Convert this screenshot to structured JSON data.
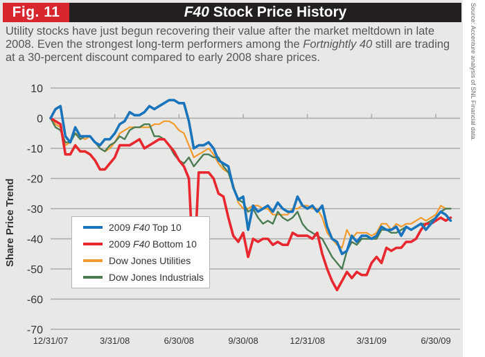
{
  "header": {
    "fig_label": "Fig. 11",
    "title_prefix": "F40",
    "title_rest": "Stock Price History"
  },
  "subtitle": {
    "part1": "Utility stocks have just begun recovering their value after the market meltdown in late 2008. Even the strongest long-term performers among the ",
    "italic": "Fortnightly 40",
    "part2": " still are trading at a 30-percent discount compared to early 2008 share prices."
  },
  "source": "Source: Accenture analysis of SNL Financial data.",
  "colors": {
    "panel": "#e8e8e7",
    "header_bg": "#231f20",
    "fig_tag": "#d7262d",
    "grid": "#a9a9a9"
  },
  "legend": [
    {
      "prefix": "2009 ",
      "italic": "F40",
      "suffix": " Top 10"
    },
    {
      "prefix": "2009 ",
      "italic": "F40",
      "suffix": " Bottom 10"
    },
    {
      "prefix": "",
      "italic": "",
      "suffix": "Dow Jones Utilities"
    },
    {
      "prefix": "",
      "italic": "",
      "suffix": "Dow Jones Industrials"
    }
  ],
  "chart_data": {
    "type": "line",
    "title": "F40 Stock Price History",
    "xlabel": "",
    "ylabel": "Share Price Trend",
    "ylim": [
      -70,
      10
    ],
    "yticks": [
      10,
      0,
      -10,
      -20,
      -30,
      -40,
      -50,
      -60,
      -70
    ],
    "xlim": [
      0,
      82
    ],
    "xticks": [
      {
        "x": 0,
        "label": "12/31/07"
      },
      {
        "x": 13,
        "label": "3/31/08"
      },
      {
        "x": 26,
        "label": "6/30/08"
      },
      {
        "x": 39,
        "label": "9/30/08"
      },
      {
        "x": 52,
        "label": "12/31/08"
      },
      {
        "x": 65,
        "label": "3/31/09"
      },
      {
        "x": 78,
        "label": "6/30/09"
      }
    ],
    "x_unit": "weeks since 12/31/07",
    "grid": true,
    "legend_position": "bottom-left",
    "series": [
      {
        "name": "2009 F40 Top 10",
        "color": "#1a74bb",
        "values": [
          0,
          3,
          4,
          -6,
          -8,
          -3,
          -6,
          -6,
          -6,
          -8,
          -9,
          -7,
          -7,
          -5,
          -2,
          -1,
          2,
          1,
          1,
          2,
          4,
          3,
          4,
          5,
          6,
          6,
          5,
          5,
          -1,
          -10,
          -9,
          -9,
          -8,
          -10,
          -14,
          -15,
          -16,
          -23,
          -27,
          -26,
          -37,
          -29,
          -31,
          -30,
          -29,
          -31,
          -28,
          -30,
          -31,
          -31,
          -26,
          -29,
          -30,
          -29,
          -31,
          -29,
          -36,
          -40,
          -41,
          -45,
          -44,
          -39,
          -41,
          -39,
          -39,
          -40,
          -39,
          -36,
          -37,
          -37,
          -36,
          -39,
          -36,
          -37,
          -36,
          -35,
          -37,
          -35,
          -33,
          -31,
          -32,
          -34
        ]
      },
      {
        "name": "2009 F40 Bottom 10",
        "color": "#e8272e",
        "values": [
          0,
          -1,
          -2,
          -12,
          -12,
          -9,
          -11,
          -11,
          -12,
          -14,
          -17,
          -17,
          -15,
          -13,
          -9,
          -9,
          -9,
          -8,
          -7,
          -10,
          -9,
          -8,
          -7,
          -7,
          -9,
          -11,
          -14,
          -16,
          -20,
          -52,
          -18,
          -18,
          -18,
          -20,
          -25,
          -26,
          -33,
          -39,
          -41,
          -38,
          -46,
          -40,
          -41,
          -40,
          -40,
          -42,
          -41,
          -42,
          -42,
          -38,
          -39,
          -39,
          -39,
          -40,
          -38,
          -45,
          -50,
          -54,
          -57,
          -54,
          -51,
          -53,
          -51,
          -52,
          -52,
          -48,
          -46,
          -48,
          -43,
          -44,
          -43,
          -43,
          -41,
          -41,
          -40,
          -37,
          -35,
          -35,
          -34,
          -33,
          -34,
          -33
        ]
      },
      {
        "name": "Dow Jones Utilities",
        "color": "#f39a2a",
        "values": [
          0,
          -2,
          -3,
          -9,
          -8,
          -5,
          -6,
          -7,
          -6,
          -8,
          -10,
          -11,
          -10,
          -8,
          -5,
          -4,
          -3,
          -3,
          -3,
          -3,
          -3,
          -2,
          -2,
          -1,
          -1,
          -2,
          -4,
          -5,
          -9,
          -13,
          -12,
          -11,
          -10,
          -12,
          -15,
          -17,
          -18,
          -22,
          -28,
          -30,
          -30,
          -29,
          -29,
          -30,
          -30,
          -32,
          -32,
          -32,
          -32,
          -30,
          -30,
          -29,
          -29,
          -30,
          -30,
          -33,
          -38,
          -40,
          -42,
          -43,
          -37,
          -40,
          -38,
          -38,
          -38,
          -39,
          -38,
          -35,
          -35,
          -37,
          -35,
          -36,
          -35,
          -35,
          -34,
          -33,
          -34,
          -33,
          -32,
          -29,
          -30,
          -30
        ]
      },
      {
        "name": "Dow Jones Industrials",
        "color": "#4a7b52",
        "values": [
          0,
          -3,
          -4,
          -8,
          -8,
          -5,
          -7,
          -6,
          -6,
          -8,
          -10,
          -11,
          -9,
          -8,
          -6,
          -7,
          -4,
          -3,
          -3,
          -2,
          -2,
          -6,
          -6,
          -7,
          -9,
          -12,
          -14,
          -15,
          -13,
          -16,
          -14,
          -12,
          -12,
          -13,
          -13,
          -16,
          -18,
          -23,
          -27,
          -28,
          -31,
          -30,
          -33,
          -35,
          -34,
          -35,
          -31,
          -33,
          -34,
          -33,
          -31,
          -35,
          -37,
          -38,
          -39,
          -40,
          -43,
          -46,
          -48,
          -50,
          -44,
          -41,
          -42,
          -40,
          -40,
          -40,
          -40,
          -37,
          -37,
          -38,
          -38,
          -37,
          -36,
          -37,
          -36,
          -35,
          -35,
          -34,
          -33,
          -31,
          -30,
          -30
        ]
      }
    ]
  }
}
